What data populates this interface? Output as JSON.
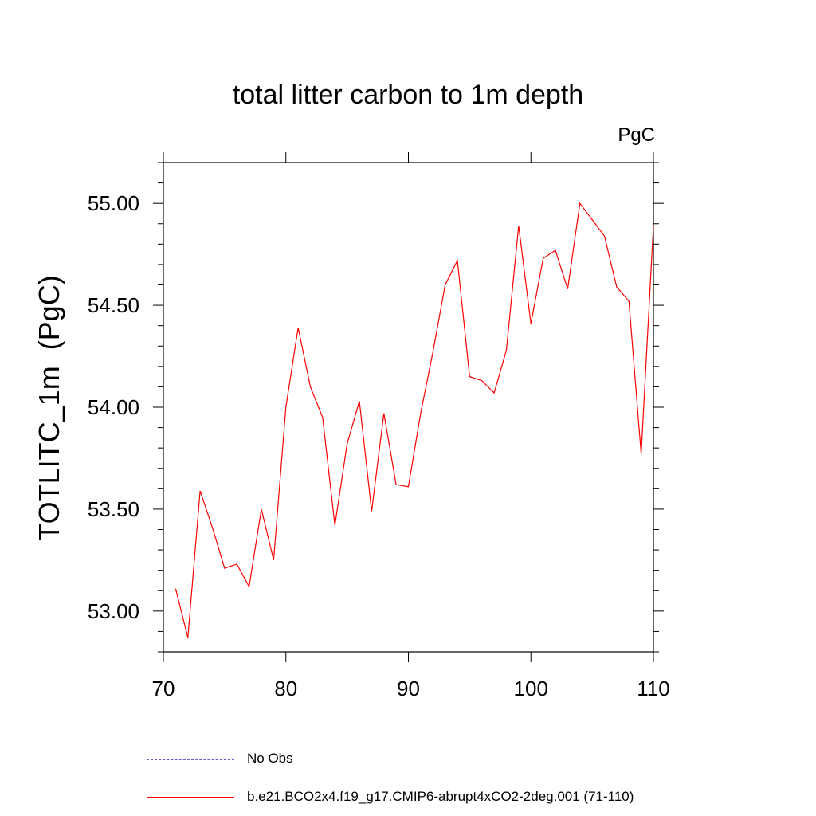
{
  "chart_data": {
    "type": "line",
    "title": "total litter carbon to 1m depth",
    "units_label": "PgC",
    "xlabel": "",
    "ylabel": "TOTLITC_1m  (PgC)",
    "xlim": [
      70,
      110
    ],
    "ylim": [
      52.8,
      55.2
    ],
    "x_ticks": [
      70,
      80,
      90,
      100,
      110
    ],
    "y_ticks": [
      "53.00",
      "53.50",
      "54.00",
      "54.50",
      "55.00"
    ],
    "series": [
      {
        "name": "b.e21.BCO2x4.f19_g17.CMIP6-abrupt4xCO2-2deg.001 (71-110)",
        "color": "#ff0000",
        "x": [
          71,
          72,
          73,
          74,
          75,
          76,
          77,
          78,
          79,
          80,
          81,
          82,
          83,
          84,
          85,
          86,
          87,
          88,
          89,
          90,
          91,
          92,
          93,
          94,
          95,
          96,
          97,
          98,
          99,
          100,
          101,
          102,
          103,
          104,
          105,
          106,
          107,
          108,
          109,
          110
        ],
        "values": [
          53.11,
          52.87,
          53.59,
          53.41,
          53.21,
          53.23,
          53.12,
          53.5,
          53.25,
          54.0,
          54.39,
          54.1,
          53.95,
          53.42,
          53.82,
          54.03,
          53.49,
          53.97,
          53.62,
          53.61,
          53.97,
          54.27,
          54.6,
          54.72,
          54.15,
          54.13,
          54.07,
          54.28,
          54.89,
          54.41,
          54.73,
          54.77,
          54.58,
          55.0,
          54.92,
          54.84,
          54.59,
          54.52,
          53.77,
          54.89
        ]
      }
    ],
    "legend": [
      {
        "label": "No Obs",
        "color": "#6a5acd",
        "style": "dashed"
      },
      {
        "label": "b.e21.BCO2x4.f19_g17.CMIP6-abrupt4xCO2-2deg.001 (71-110)",
        "color": "#ff0000",
        "style": "solid"
      }
    ]
  }
}
